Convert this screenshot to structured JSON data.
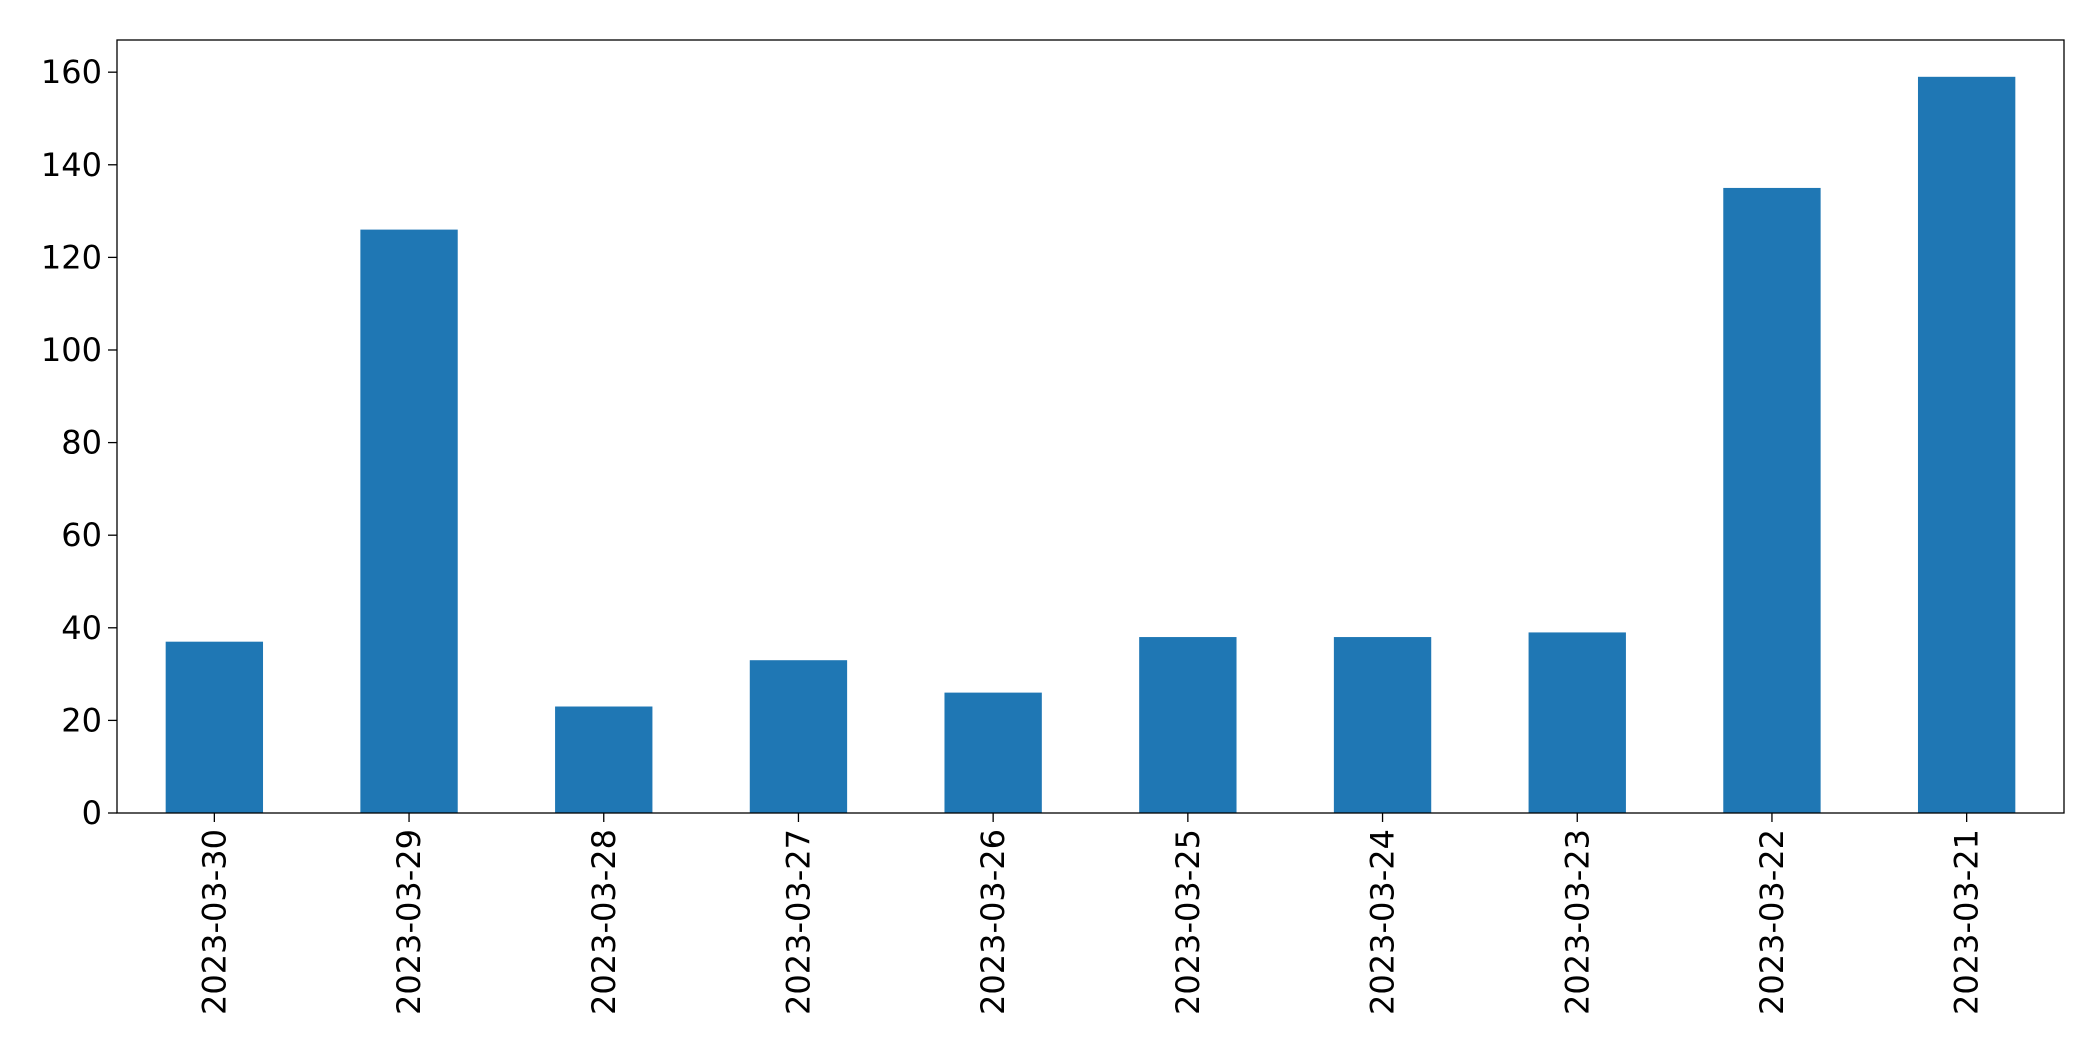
{
  "chart_data": {
    "type": "bar",
    "categories": [
      "2023-03-30",
      "2023-03-29",
      "2023-03-28",
      "2023-03-27",
      "2023-03-26",
      "2023-03-25",
      "2023-03-24",
      "2023-03-23",
      "2023-03-22",
      "2023-03-21"
    ],
    "values": [
      37,
      126,
      23,
      33,
      26,
      38,
      38,
      39,
      135,
      159
    ],
    "color": "#1f77b4",
    "ylim": [
      0,
      166.95
    ],
    "yticks": [
      0,
      20,
      40,
      60,
      80,
      100,
      120,
      140,
      160
    ],
    "grid": false
  }
}
